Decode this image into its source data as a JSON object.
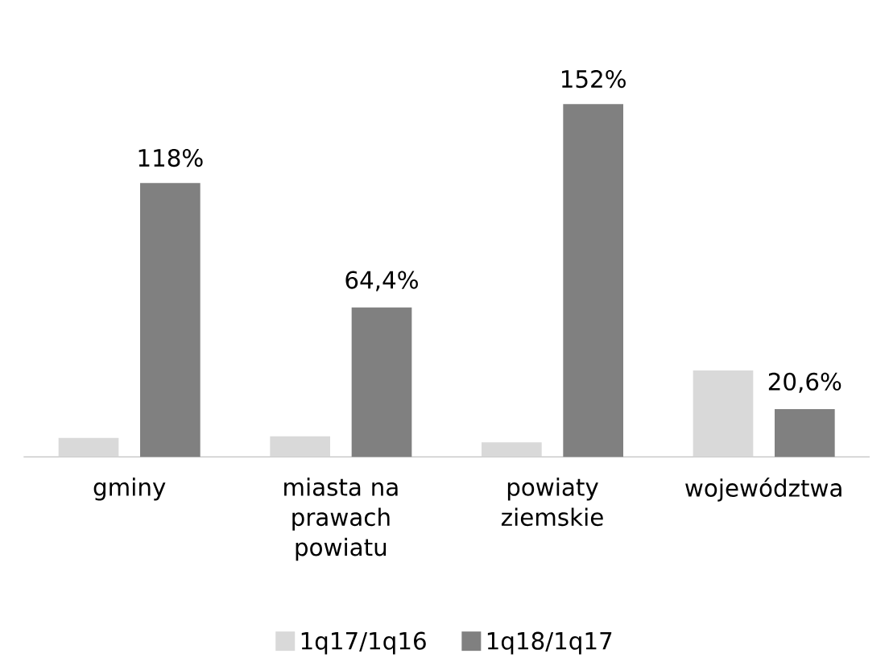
{
  "chart_data": {
    "type": "bar",
    "categories": [
      "gminy",
      "miasta na prawach powiatu",
      "powiaty ziemskie",
      "województwa"
    ],
    "series": [
      {
        "name": "1q17/1q16",
        "color": "#d9d9d9",
        "values": [
          8.2,
          8.9,
          6.3,
          37.2
        ]
      },
      {
        "name": "1q18/1q17",
        "color": "#808080",
        "values": [
          118,
          64.4,
          152,
          20.6
        ],
        "value_labels": [
          "118%",
          "64,4%",
          "152%",
          "20,6%"
        ]
      }
    ],
    "legend": "bottom"
  }
}
